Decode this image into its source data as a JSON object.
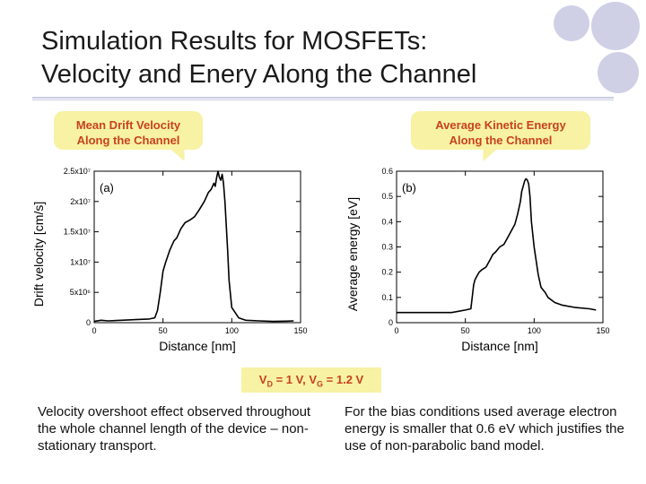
{
  "slide": {
    "title_line1": "Simulation Results for MOSFETs:",
    "title_line2": "Velocity and Enery Along the Channel",
    "callout_left_line1": "Mean Drift Velocity",
    "callout_left_line2": "Along the Channel",
    "callout_right_line1": "Average Kinetic Energy",
    "callout_right_line2": "Along the Channel",
    "bias_vd": "1 V",
    "bias_vg": "1.2 V",
    "note_left": "Velocity overshoot effect observed throughout the whole channel length of the device – non-stationary transport.",
    "note_right": "For the bias conditions used average electron energy is smaller that 0.6 eV which justifies the use of non-parabolic band model.",
    "accent_color": "#c8421c",
    "callout_color": "#f7f2a4",
    "decor_color": "#cfd0e6"
  },
  "chart_data": [
    {
      "type": "line",
      "panel_label": "(a)",
      "xlabel": "Distance   [nm]",
      "ylabel": "Drift velocity   [cm/s]",
      "xlim": [
        0,
        150
      ],
      "ylim": [
        0,
        25000000
      ],
      "x_ticks": [
        "0",
        "50",
        "100",
        "150"
      ],
      "y_ticks": [
        "0",
        "5x10⁶",
        "1x10⁷",
        "1.5x10⁷",
        "2x10⁷",
        "2.5x10⁷"
      ],
      "y_tick_values": [
        0,
        5000000,
        10000000,
        15000000,
        20000000,
        25000000
      ],
      "series": [
        {
          "x": [
            0,
            5,
            10,
            20,
            30,
            40,
            44,
            46,
            48,
            50,
            52,
            55,
            58,
            60,
            63,
            66,
            70,
            73,
            76,
            80,
            83,
            85,
            87,
            88,
            89,
            90,
            91,
            92,
            93,
            94,
            95,
            96,
            97,
            98,
            100,
            105,
            110,
            120,
            130,
            140,
            145
          ],
          "values": [
            200000,
            400000,
            300000,
            400000,
            500000,
            600000,
            800000,
            2000000,
            5000000,
            8500000,
            10000000,
            12000000,
            13500000,
            14000000,
            15500000,
            16500000,
            17000000,
            17500000,
            18500000,
            20000000,
            21500000,
            22000000,
            23000000,
            22500000,
            24000000,
            25000000,
            24000000,
            23500000,
            24500000,
            23000000,
            20000000,
            16000000,
            12000000,
            7000000,
            2500000,
            800000,
            400000,
            300000,
            200000,
            250000,
            300000
          ]
        }
      ]
    },
    {
      "type": "line",
      "panel_label": "(b)",
      "xlabel": "Distance   [nm]",
      "ylabel": "Average energy   [eV]",
      "xlim": [
        0,
        150
      ],
      "ylim": [
        0,
        0.6
      ],
      "x_ticks": [
        "0",
        "50",
        "100",
        "150"
      ],
      "y_ticks": [
        "0",
        "0.1",
        "0.2",
        "0.3",
        "0.4",
        "0.5",
        "0.6"
      ],
      "y_tick_values": [
        0,
        0.1,
        0.2,
        0.3,
        0.4,
        0.5,
        0.6
      ],
      "series": [
        {
          "x": [
            0,
            10,
            20,
            30,
            40,
            45,
            50,
            54,
            55,
            56,
            57,
            58,
            60,
            62,
            65,
            68,
            70,
            72,
            75,
            78,
            80,
            83,
            86,
            88,
            90,
            91,
            92,
            93,
            94,
            95,
            96,
            97,
            98,
            100,
            103,
            105,
            108,
            110,
            115,
            120,
            130,
            140,
            145
          ],
          "values": [
            0.04,
            0.04,
            0.04,
            0.04,
            0.04,
            0.045,
            0.05,
            0.055,
            0.1,
            0.15,
            0.17,
            0.18,
            0.2,
            0.21,
            0.22,
            0.25,
            0.27,
            0.28,
            0.3,
            0.31,
            0.33,
            0.36,
            0.39,
            0.43,
            0.48,
            0.52,
            0.54,
            0.56,
            0.57,
            0.565,
            0.55,
            0.5,
            0.4,
            0.3,
            0.19,
            0.14,
            0.12,
            0.1,
            0.08,
            0.07,
            0.06,
            0.055,
            0.05
          ]
        }
      ]
    }
  ]
}
